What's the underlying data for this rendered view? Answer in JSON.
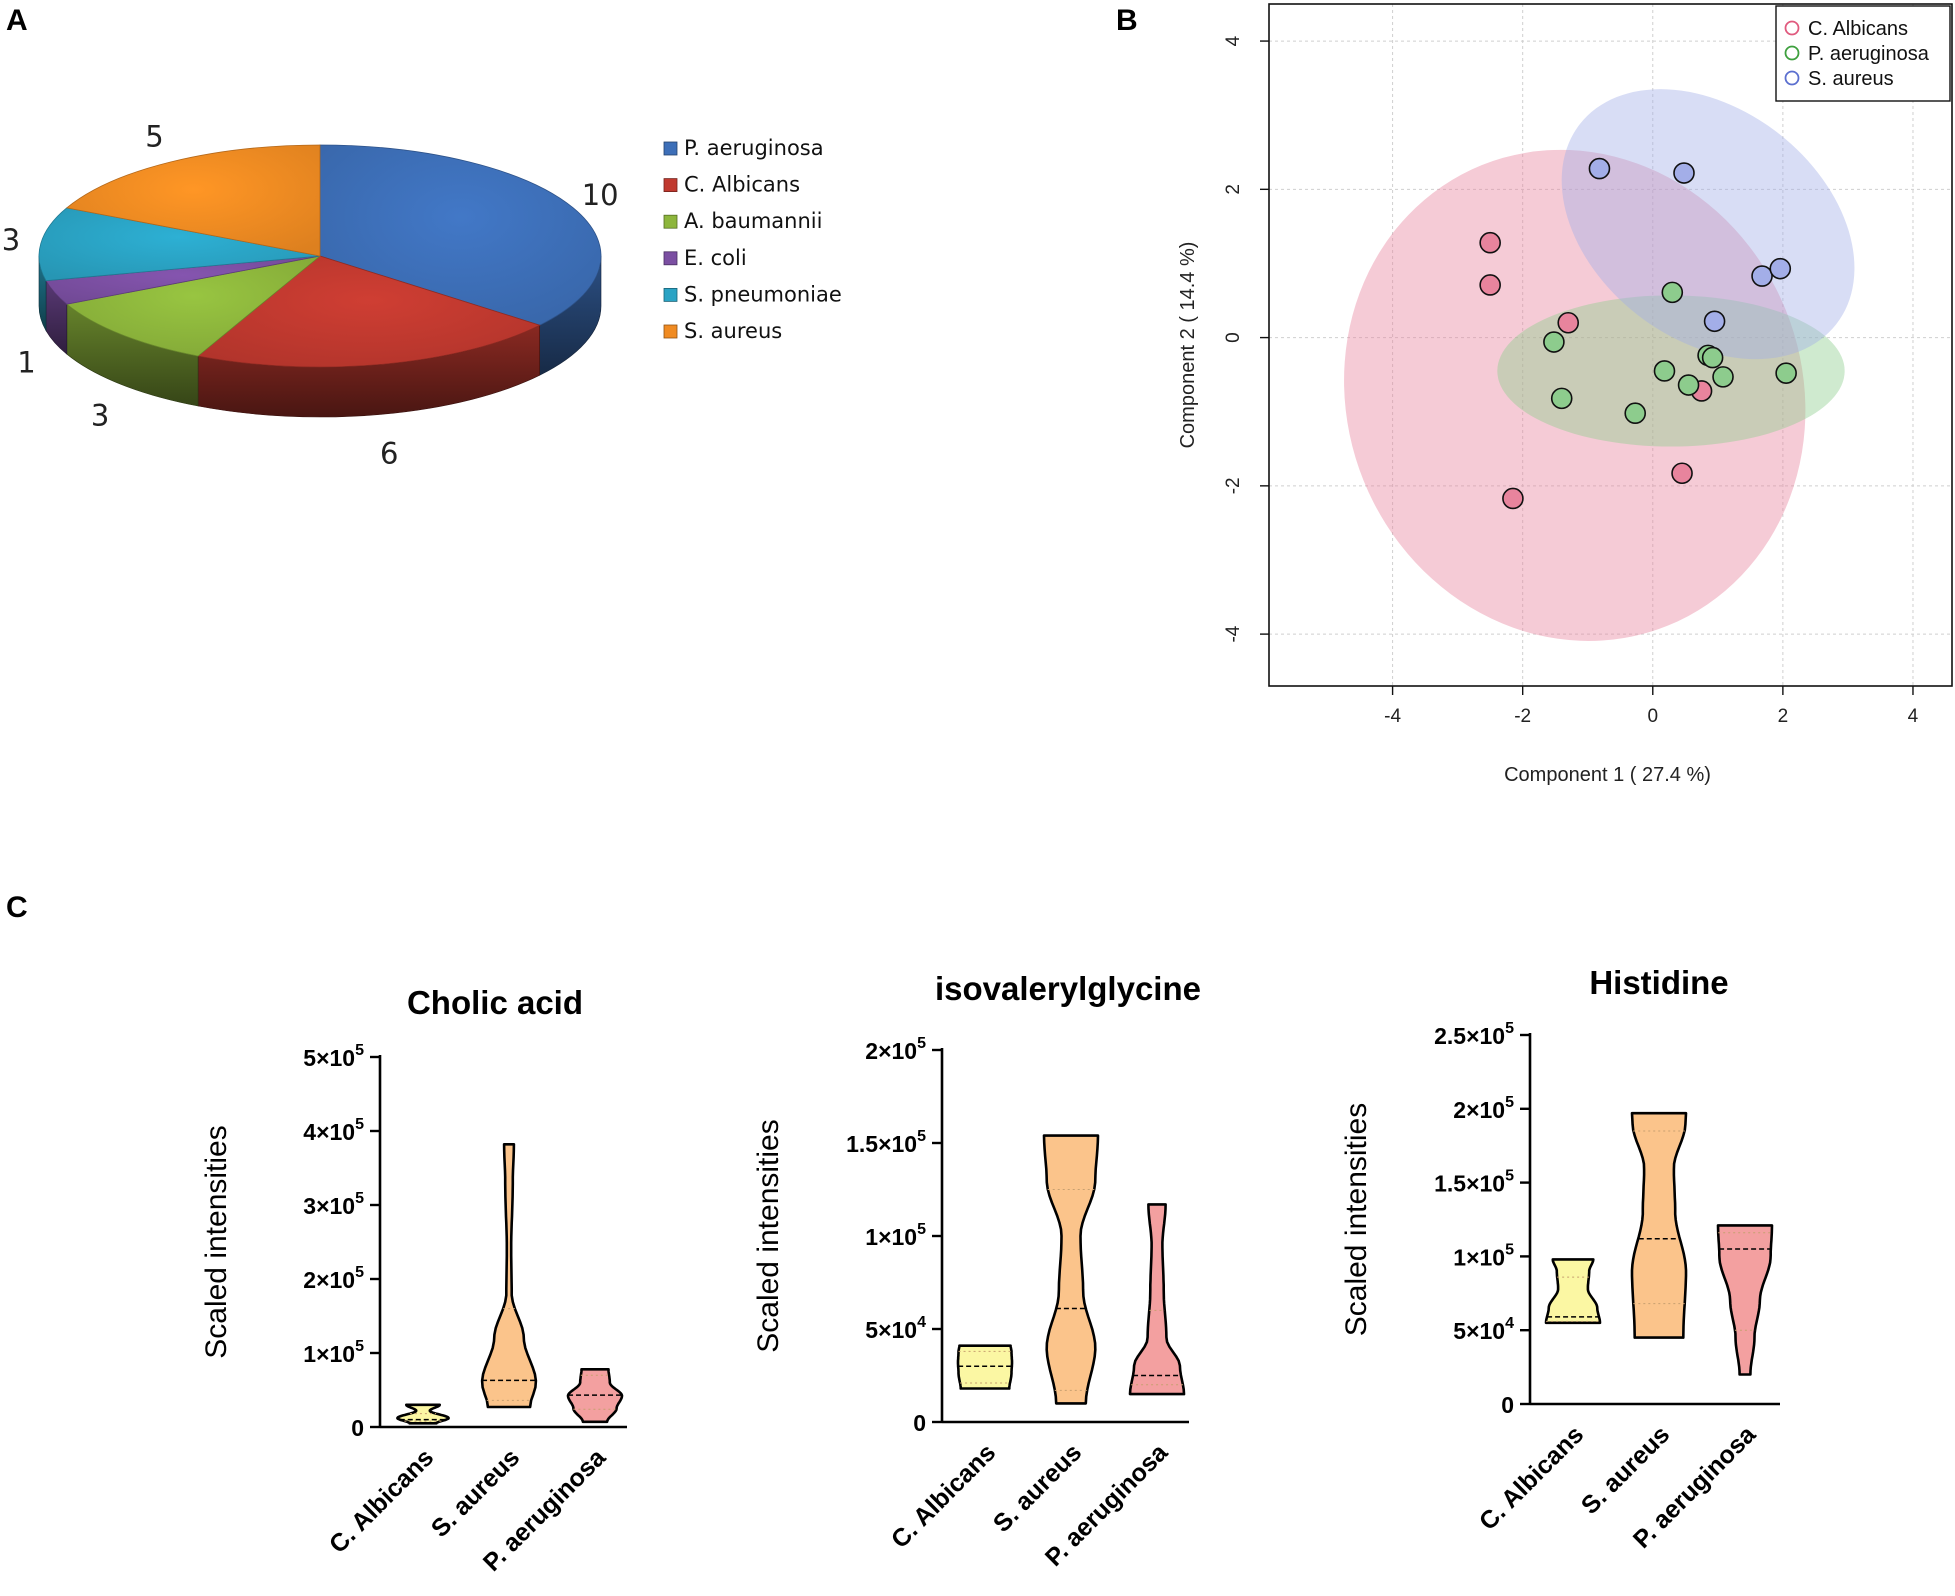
{
  "panels": {
    "a": "A",
    "b": "B",
    "c": "C"
  },
  "chart_data": [
    {
      "type": "pie",
      "panel": "A",
      "labels": [
        "P. aeruginosa",
        "C. Albicans",
        "A. baumannii",
        "E. coli",
        "S. pneumoniae",
        "S. aureus"
      ],
      "values": [
        10,
        6,
        3,
        1,
        3,
        5
      ],
      "colors": [
        "#3d6fb8",
        "#c0392f",
        "#8db63c",
        "#7b4fa2",
        "#2aa3c4",
        "#f08b22"
      ],
      "legend_position": "right"
    },
    {
      "type": "scatter",
      "panel": "B",
      "xlabel": "Component 1 ( 27.4 %)",
      "ylabel": "Component 2 ( 14.4 %)",
      "xlim": [
        -5.9,
        4.6
      ],
      "ylim": [
        -4.7,
        4.5
      ],
      "xticks": [
        -4,
        -2,
        0,
        2,
        4
      ],
      "yticks": [
        -4,
        -2,
        0,
        2,
        4
      ],
      "grid": true,
      "legend_position": "top-right",
      "series": [
        {
          "name": "C. Albicans",
          "color": "#e05a7e",
          "fill": "#e8849d",
          "points": [
            [
              -2.5,
              1.28
            ],
            [
              -2.5,
              0.71
            ],
            [
              -1.3,
              0.2
            ],
            [
              0.75,
              -0.72
            ],
            [
              0.45,
              -1.83
            ],
            [
              -2.15,
              -2.17
            ]
          ],
          "ellipse": {
            "center": [
              -1.2,
              -0.78
            ],
            "rx_data": 3.5,
            "ry_data": 3.35,
            "angle_deg": -22
          }
        },
        {
          "name": "P. aeruginosa",
          "color": "#3ea03e",
          "fill": "#8dcc8d",
          "points": [
            [
              -1.52,
              -0.06
            ],
            [
              -1.4,
              -0.82
            ],
            [
              -0.27,
              -1.02
            ],
            [
              0.18,
              -0.45
            ],
            [
              0.3,
              0.61
            ],
            [
              0.55,
              -0.64
            ],
            [
              0.85,
              -0.24
            ],
            [
              0.92,
              -0.27
            ],
            [
              1.08,
              -0.53
            ],
            [
              2.05,
              -0.48
            ]
          ],
          "ellipse": {
            "center": [
              0.28,
              -0.45
            ],
            "rx_data": 2.67,
            "ry_data": 1.02,
            "angle_deg": 0
          }
        },
        {
          "name": "S. aureus",
          "color": "#5b6fcf",
          "fill": "#a3aee8",
          "points": [
            [
              -0.82,
              2.28
            ],
            [
              0.48,
              2.22
            ],
            [
              1.68,
              0.83
            ],
            [
              1.96,
              0.93
            ],
            [
              0.95,
              0.22
            ]
          ],
          "ellipse": {
            "center": [
              0.85,
              1.53
            ],
            "rx_data": 2.5,
            "ry_data": 1.55,
            "angle_deg": 38
          }
        }
      ]
    },
    {
      "type": "violin",
      "panel": "C",
      "title": "Cholic acid",
      "ylabel": "Scaled intensities",
      "ylim": [
        0,
        500000
      ],
      "yticks": [
        0,
        100000,
        200000,
        300000,
        400000,
        500000
      ],
      "ytick_labels": [
        "0",
        "1×10",
        "2×10",
        "3×10",
        "4×10",
        "5×10"
      ],
      "ytick_exponents": [
        "",
        "5",
        "5",
        "5",
        "5",
        "5"
      ],
      "categories": [
        "C. Albicans",
        "S. aureus",
        "P. aeruginosa"
      ],
      "colors": [
        "#fbf7a3",
        "#fbc48b",
        "#f3a0a0"
      ],
      "violins": [
        {
          "min": 5000,
          "max": 30000,
          "median": 10000,
          "q1": 8000,
          "q3": 18000,
          "profile": [
            [
              5000,
              0.5
            ],
            [
              12000,
              0.95
            ],
            [
              22000,
              0.25
            ],
            [
              30000,
              0.62
            ]
          ]
        },
        {
          "min": 27000,
          "max": 382000,
          "median": 63000,
          "q1": 36000,
          "q3": 160000,
          "profile": [
            [
              27000,
              0.78
            ],
            [
              60000,
              1.0
            ],
            [
              120000,
              0.55
            ],
            [
              180000,
              0.1
            ],
            [
              240000,
              0.08
            ],
            [
              330000,
              0.14
            ],
            [
              382000,
              0.18
            ]
          ]
        },
        {
          "min": 7000,
          "max": 78000,
          "median": 43000,
          "q1": 24000,
          "q3": 70000,
          "profile": [
            [
              7000,
              0.45
            ],
            [
              25000,
              0.8
            ],
            [
              42000,
              1.0
            ],
            [
              60000,
              0.55
            ],
            [
              78000,
              0.5
            ]
          ]
        }
      ]
    },
    {
      "type": "violin",
      "panel": "C",
      "title": "isovalerylglycine",
      "ylabel": "Scaled intensities",
      "ylim": [
        0,
        200000
      ],
      "yticks": [
        0,
        50000,
        100000,
        150000,
        200000
      ],
      "ytick_labels": [
        "0",
        "5×10",
        "1×10",
        "1.5×10",
        "2×10"
      ],
      "ytick_exponents": [
        "",
        "4",
        "5",
        "5",
        "5"
      ],
      "categories": [
        "C. Albicans",
        "S. aureus",
        "P. aeruginosa"
      ],
      "colors": [
        "#fbf7a3",
        "#fbc48b",
        "#f3a0a0"
      ],
      "violins": [
        {
          "min": 18000,
          "max": 41000,
          "median": 30000,
          "q1": 21000,
          "q3": 38000,
          "profile": [
            [
              18000,
              0.9
            ],
            [
              26000,
              0.98
            ],
            [
              32000,
              1.0
            ],
            [
              38000,
              0.98
            ],
            [
              41000,
              0.95
            ]
          ]
        },
        {
          "min": 10000,
          "max": 154000,
          "median": 61000,
          "q1": 17000,
          "q3": 125000,
          "profile": [
            [
              10000,
              0.55
            ],
            [
              40000,
              0.9
            ],
            [
              70000,
              0.45
            ],
            [
              100000,
              0.35
            ],
            [
              130000,
              0.9
            ],
            [
              154000,
              1.0
            ]
          ]
        },
        {
          "min": 15000,
          "max": 117000,
          "median": 25000,
          "q1": 20000,
          "q3": 60000,
          "profile": [
            [
              15000,
              1.0
            ],
            [
              30000,
              0.85
            ],
            [
              45000,
              0.35
            ],
            [
              70000,
              0.25
            ],
            [
              95000,
              0.2
            ],
            [
              117000,
              0.32
            ]
          ]
        }
      ]
    },
    {
      "type": "violin",
      "panel": "C",
      "title": "Histidine",
      "ylabel": "Scaled intensities",
      "ylim": [
        0,
        250000
      ],
      "yticks": [
        0,
        50000,
        100000,
        150000,
        200000,
        250000
      ],
      "ytick_labels": [
        "0",
        "5×10",
        "1×10",
        "1.5×10",
        "2×10",
        "2.5×10"
      ],
      "ytick_exponents": [
        "",
        "4",
        "5",
        "5",
        "5",
        "5"
      ],
      "categories": [
        "C. Albicans",
        "S. aureus",
        "P. aeruginosa"
      ],
      "colors": [
        "#fbf7a3",
        "#fbc48b",
        "#f3a0a0"
      ],
      "violins": [
        {
          "min": 55000,
          "max": 98000,
          "median": 59000,
          "q1": 56000,
          "q3": 86000,
          "profile": [
            [
              55000,
              1.0
            ],
            [
              65000,
              0.9
            ],
            [
              78000,
              0.55
            ],
            [
              90000,
              0.6
            ],
            [
              98000,
              0.75
            ]
          ]
        },
        {
          "min": 45000,
          "max": 197000,
          "median": 112000,
          "q1": 68000,
          "q3": 185000,
          "profile": [
            [
              45000,
              0.9
            ],
            [
              90000,
              1.0
            ],
            [
              130000,
              0.6
            ],
            [
              160000,
              0.55
            ],
            [
              190000,
              0.98
            ],
            [
              197000,
              1.0
            ]
          ]
        },
        {
          "min": 20000,
          "max": 121000,
          "median": 105000,
          "q1": 50000,
          "q3": 116000,
          "profile": [
            [
              20000,
              0.2
            ],
            [
              45000,
              0.35
            ],
            [
              70000,
              0.55
            ],
            [
              100000,
              0.95
            ],
            [
              121000,
              1.0
            ]
          ]
        }
      ]
    }
  ]
}
